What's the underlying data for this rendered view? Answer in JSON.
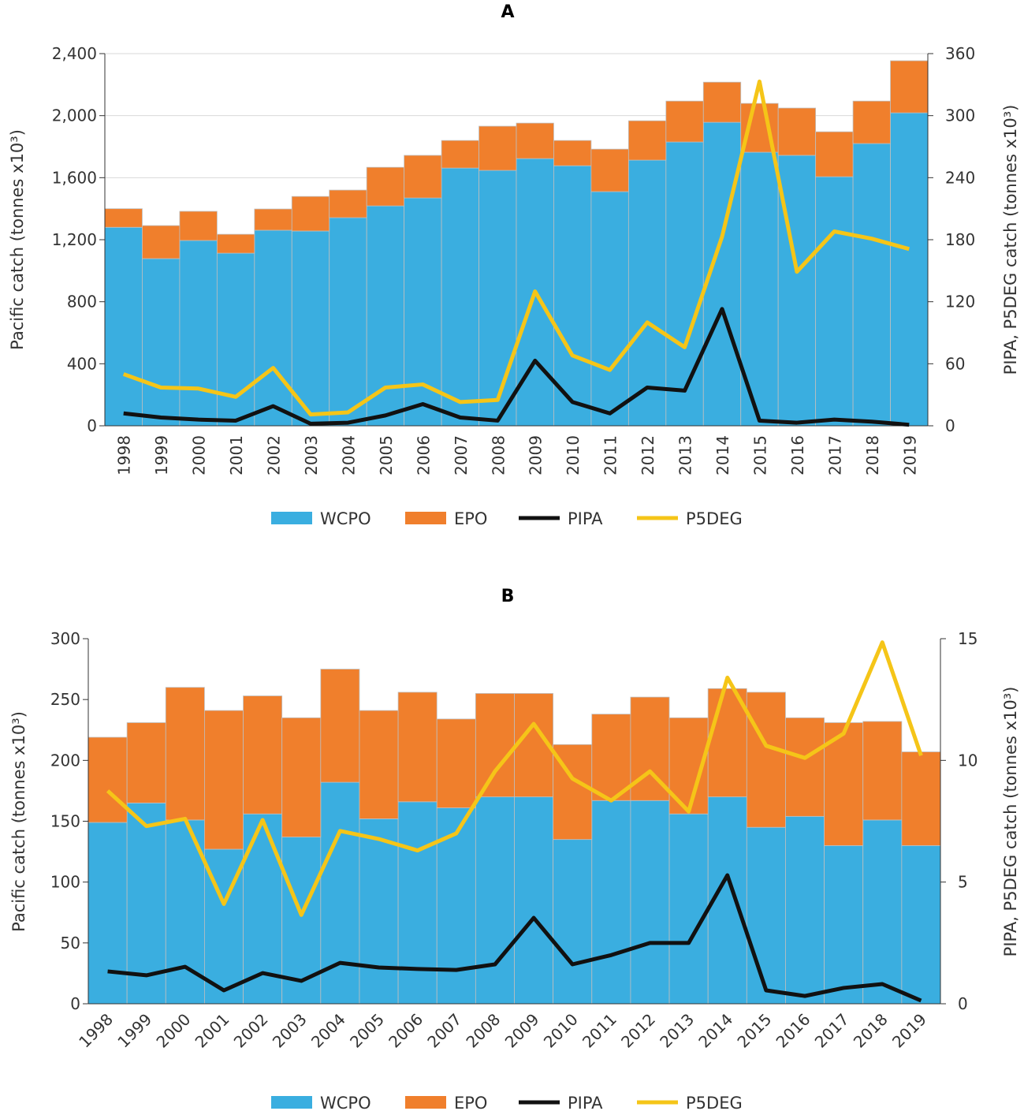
{
  "chart_data": [
    {
      "type": "bar",
      "title": "A",
      "ylabel": "Pacific catch (tonnes x10³)",
      "y2label": "PIPA, P5DEG catch (tonnes x10³)",
      "ylim": [
        0,
        2400
      ],
      "y2lim": [
        0,
        360
      ],
      "yticks": [
        "0",
        "400",
        "800",
        "1,200",
        "1,600",
        "2,000",
        "2,400"
      ],
      "yticks_values": [
        0,
        400,
        800,
        1200,
        1600,
        2000,
        2400
      ],
      "y2ticks": [
        "0",
        "60",
        "120",
        "180",
        "240",
        "300",
        "360"
      ],
      "y2ticks_values": [
        0,
        60,
        120,
        180,
        240,
        300,
        360
      ],
      "grid": true,
      "legend": "bottom",
      "categories": [
        "1998",
        "1999",
        "2000",
        "2001",
        "2002",
        "2003",
        "2004",
        "2005",
        "2006",
        "2007",
        "2008",
        "2009",
        "2010",
        "2011",
        "2012",
        "2013",
        "2014",
        "2015",
        "2016",
        "2017",
        "2018",
        "2019"
      ],
      "series": [
        {
          "name": "WCPO",
          "kind": "stacked-bar",
          "axis": "left",
          "color": "#3aaee0",
          "values": [
            1280,
            1078,
            1195,
            1113,
            1261,
            1256,
            1342,
            1418,
            1469,
            1662,
            1647,
            1723,
            1677,
            1510,
            1713,
            1830,
            1957,
            1764,
            1744,
            1606,
            1820,
            2018
          ]
        },
        {
          "name": "EPO",
          "kind": "stacked-bar",
          "axis": "left",
          "color": "#f07f2c",
          "values": [
            120,
            213,
            188,
            122,
            137,
            223,
            178,
            249,
            275,
            178,
            285,
            229,
            163,
            274,
            254,
            264,
            259,
            315,
            305,
            290,
            274,
            336
          ]
        },
        {
          "name": "PIPA",
          "kind": "line",
          "axis": "right",
          "color": "#111111",
          "values": [
            12,
            8,
            6,
            5,
            19,
            2,
            3,
            10,
            21,
            8,
            5,
            63,
            23,
            12,
            37,
            34,
            113,
            5,
            3,
            6,
            4,
            1
          ]
        },
        {
          "name": "P5DEG",
          "kind": "line",
          "axis": "right",
          "color": "#f5c518",
          "values": [
            50,
            37,
            36,
            28,
            56,
            11,
            13,
            37,
            40,
            23,
            25,
            130,
            68,
            54,
            100,
            76,
            183,
            333,
            149,
            188,
            181,
            171
          ]
        }
      ]
    },
    {
      "type": "bar",
      "title": "B",
      "ylabel": "Pacific catch (tonnes x10³)",
      "y2label": "PIPA, P5DEG catch (tonnes x10³)",
      "ylim": [
        0,
        300
      ],
      "y2lim": [
        0,
        15
      ],
      "yticks": [
        "0",
        "50",
        "100",
        "150",
        "200",
        "250",
        "300"
      ],
      "yticks_values": [
        0,
        50,
        100,
        150,
        200,
        250,
        300
      ],
      "y2ticks": [
        "0",
        "5",
        "10",
        "15"
      ],
      "y2ticks_values": [
        0,
        5,
        10,
        15
      ],
      "grid": false,
      "legend": "bottom",
      "categories": [
        "1998",
        "1999",
        "2000",
        "2001",
        "2002",
        "2003",
        "2004",
        "2005",
        "2006",
        "2007",
        "2008",
        "2009",
        "2010",
        "2011",
        "2012",
        "2013",
        "2014",
        "2015",
        "2016",
        "2017",
        "2018",
        "2019"
      ],
      "series": [
        {
          "name": "WCPO",
          "kind": "stacked-bar",
          "axis": "left",
          "color": "#3aaee0",
          "values": [
            149,
            165,
            151,
            127,
            156,
            137,
            182,
            152,
            166,
            161,
            170,
            170,
            135,
            167,
            167,
            156,
            170,
            145,
            154,
            130,
            151,
            130
          ]
        },
        {
          "name": "EPO",
          "kind": "stacked-bar",
          "axis": "left",
          "color": "#f07f2c",
          "values": [
            70,
            66,
            109,
            114,
            97,
            98,
            93,
            89,
            90,
            73,
            85,
            85,
            78,
            71,
            85,
            79,
            89,
            111,
            81,
            101,
            81,
            77
          ]
        },
        {
          "name": "PIPA",
          "kind": "line",
          "axis": "right",
          "color": "#111111",
          "values": [
            1.33,
            1.17,
            1.52,
            0.55,
            1.26,
            0.94,
            1.68,
            1.49,
            1.43,
            1.39,
            1.62,
            3.53,
            1.62,
            2.0,
            2.5,
            2.5,
            5.28,
            0.55,
            0.32,
            0.65,
            0.81,
            0.13
          ]
        },
        {
          "name": "P5DEG",
          "kind": "line",
          "axis": "right",
          "color": "#f5c518",
          "values": [
            8.75,
            7.3,
            7.6,
            4.1,
            7.55,
            3.65,
            7.1,
            6.77,
            6.3,
            7.0,
            9.55,
            11.5,
            9.25,
            8.35,
            9.55,
            7.9,
            13.4,
            10.6,
            10.1,
            11.1,
            14.85,
            10.2
          ]
        }
      ]
    }
  ]
}
